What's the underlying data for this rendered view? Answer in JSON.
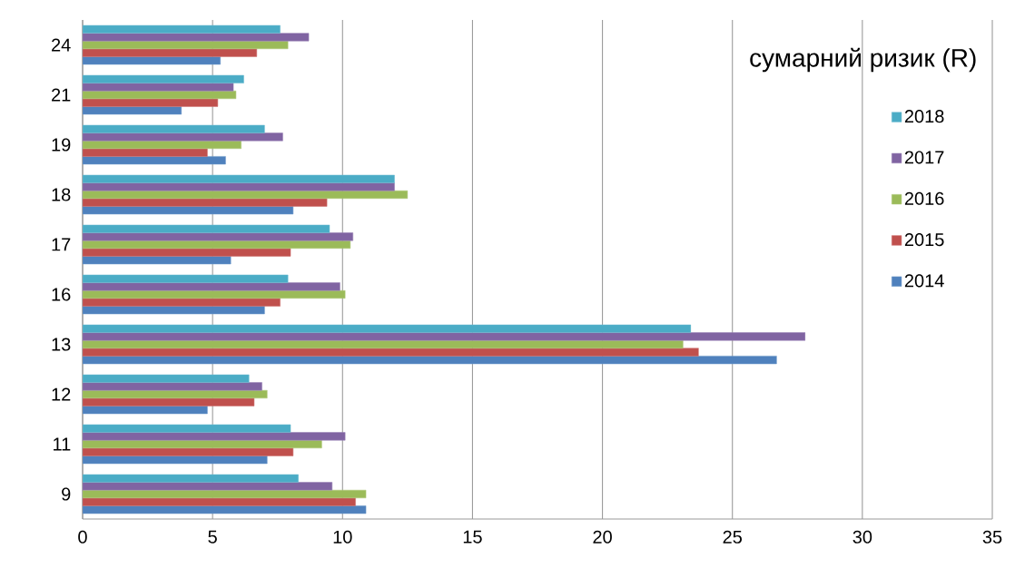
{
  "chart_data": {
    "type": "bar",
    "orientation": "horizontal",
    "title": "сумарний ризик (R)",
    "categories": [
      "24",
      "21",
      "19",
      "18",
      "17",
      "16",
      "13",
      "12",
      "11",
      "9"
    ],
    "series": [
      {
        "name": "2018",
        "color": "#4bacc6",
        "values": [
          7.6,
          6.2,
          7.0,
          12.0,
          9.5,
          7.9,
          23.4,
          6.4,
          8.0,
          8.3
        ]
      },
      {
        "name": "2017",
        "color": "#8064a2",
        "values": [
          8.7,
          5.8,
          7.7,
          12.0,
          10.4,
          9.9,
          27.8,
          6.9,
          10.1,
          9.6
        ]
      },
      {
        "name": "2016",
        "color": "#9bbb59",
        "values": [
          7.9,
          5.9,
          6.1,
          12.5,
          10.3,
          10.1,
          23.1,
          7.1,
          9.2,
          10.9
        ]
      },
      {
        "name": "2015",
        "color": "#c0504d",
        "values": [
          6.7,
          5.2,
          4.8,
          9.4,
          8.0,
          7.6,
          23.7,
          6.6,
          8.1,
          10.5
        ]
      },
      {
        "name": "2014",
        "color": "#4f81bd",
        "values": [
          5.3,
          3.8,
          5.5,
          8.1,
          5.7,
          7.0,
          26.7,
          4.8,
          7.1,
          10.9
        ]
      }
    ],
    "xlim": [
      0,
      35
    ],
    "xticks": [
      0,
      5,
      10,
      15,
      20,
      25,
      30,
      35
    ],
    "grid": "x",
    "legend": "right"
  }
}
